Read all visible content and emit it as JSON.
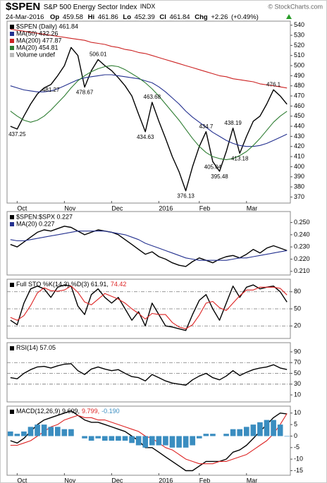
{
  "header": {
    "symbol": "$SPEN",
    "name": "S&P 500 Energy Sector Index",
    "exchange": "INDX",
    "date": "24-Mar-2016",
    "fields": [
      {
        "label": "Op",
        "value": 459.58
      },
      {
        "label": "Hi",
        "value": 461.86
      },
      {
        "label": "Lo",
        "value": 452.39
      },
      {
        "label": "Cl",
        "value": 461.84
      },
      {
        "label": "Chg",
        "value": 2.26,
        "value_label": "+2.26"
      }
    ],
    "change_pct": {
      "value": 0.49,
      "label": "(+0.49%)"
    },
    "source": "© StockCharts.com"
  },
  "chart_data": [
    {
      "type": "line",
      "categories": [
        null,
        "Oct",
        null,
        null,
        null,
        null,
        null,
        null,
        "Nov",
        null,
        null,
        null,
        null,
        null,
        null,
        "Dec",
        null,
        null,
        null,
        null,
        null,
        null,
        "2016",
        null,
        null,
        null,
        null,
        null,
        "Feb",
        null,
        null,
        null,
        null,
        null,
        null,
        "Mar",
        null,
        null,
        null,
        null,
        null,
        null
      ],
      "series": [
        {
          "name": "$SPEN (Daily) 461.84",
          "color": "#000000",
          "values": [
            440,
            437.25,
            450,
            462,
            472,
            478,
            481.27,
            490,
            500,
            518,
            510,
            478.67,
            495,
            506.01,
            500,
            495,
            488,
            480,
            470,
            452,
            434.63,
            463.68,
            445,
            428,
            410,
            395,
            376.13,
            400,
            420,
            434.7,
            405.04,
            395.48,
            415,
            438.19,
            413.18,
            430,
            445,
            450,
            462,
            476.1,
            470,
            461.84
          ]
        },
        {
          "name": "MA(50) 432.26",
          "color": "#23308f",
          "values": [
            480,
            478,
            476,
            475,
            474,
            474,
            475,
            477,
            480,
            483,
            486,
            488,
            489,
            490,
            491,
            491,
            490,
            489,
            488,
            487,
            485,
            483,
            479,
            474,
            468,
            462,
            455,
            449,
            444,
            439,
            434,
            430,
            426,
            423,
            421,
            420,
            420,
            421,
            423,
            426,
            429,
            432.26
          ]
        },
        {
          "name": "MA(200) 477.87",
          "color": "#cc2222",
          "values": [
            536,
            535,
            534,
            533,
            532,
            531,
            530,
            529,
            528,
            527,
            526,
            525,
            523,
            522,
            521,
            519,
            518,
            516,
            515,
            513,
            512,
            510,
            508,
            506,
            504,
            502,
            500,
            498,
            496,
            494,
            492,
            490,
            489,
            487,
            486,
            485,
            484,
            482,
            481,
            480,
            479,
            477.87
          ]
        },
        {
          "name": "MA(20) 454.81",
          "color": "#2e7d32",
          "values": [
            455,
            450,
            446,
            444,
            446,
            450,
            456,
            463,
            470,
            478,
            485,
            490,
            494,
            497,
            499,
            500,
            499,
            496,
            492,
            488,
            483,
            477,
            470,
            462,
            454,
            446,
            437,
            428,
            420,
            414,
            410,
            408,
            407,
            408,
            411,
            415,
            421,
            428,
            436,
            444,
            450,
            454.81
          ]
        }
      ],
      "legend_notes": [
        "Volume undef"
      ],
      "annotations": [
        437.25,
        481.27,
        478.67,
        506.01,
        434.63,
        463.68,
        376.13,
        434.7,
        405.04,
        395.48,
        438.19,
        413.18,
        476.1
      ],
      "ylim": [
        364,
        544
      ],
      "yticks": [
        370,
        380,
        390,
        400,
        410,
        420,
        430,
        440,
        450,
        460,
        470,
        480,
        490,
        500,
        510,
        520,
        530,
        540
      ],
      "grid": false
    },
    {
      "type": "line",
      "series": [
        {
          "name": "$SPEN:$SPX 0.227",
          "color": "#000000",
          "values": [
            0.232,
            0.23,
            0.234,
            0.238,
            0.242,
            0.244,
            0.243,
            0.245,
            0.247,
            0.246,
            0.243,
            0.24,
            0.242,
            0.244,
            0.243,
            0.242,
            0.24,
            0.236,
            0.232,
            0.228,
            0.224,
            0.226,
            0.222,
            0.22,
            0.217,
            0.215,
            0.214,
            0.218,
            0.221,
            0.219,
            0.217,
            0.22,
            0.222,
            0.223,
            0.221,
            0.224,
            0.228,
            0.225,
            0.229,
            0.231,
            0.229,
            0.227
          ]
        },
        {
          "name": "MA(20) 0.227",
          "color": "#23308f",
          "values": [
            0.236,
            0.235,
            0.235,
            0.236,
            0.237,
            0.238,
            0.239,
            0.24,
            0.241,
            0.242,
            0.243,
            0.243,
            0.243,
            0.243,
            0.243,
            0.242,
            0.241,
            0.24,
            0.238,
            0.236,
            0.233,
            0.231,
            0.229,
            0.227,
            0.225,
            0.223,
            0.221,
            0.22,
            0.219,
            0.219,
            0.219,
            0.219,
            0.219,
            0.22,
            0.221,
            0.221,
            0.222,
            0.223,
            0.224,
            0.225,
            0.226,
            0.227
          ]
        }
      ],
      "ylim": [
        0.207,
        0.259
      ],
      "yticks": [
        {
          "value": 0.21,
          "label": "0.210"
        },
        {
          "value": 0.22,
          "label": "0.220"
        },
        {
          "value": 0.23,
          "label": "0.230"
        },
        {
          "value": 0.24,
          "label": "0.240"
        },
        {
          "value": 0.25,
          "label": "0.250"
        }
      ],
      "grid": false
    },
    {
      "type": "line",
      "legend": [
        "Full STO %K(14,3) %D(3) 61.91,",
        "74.42"
      ],
      "series": [
        {
          "color": "#000000",
          "values": [
            30,
            22,
            60,
            85,
            90,
            85,
            70,
            88,
            92,
            90,
            55,
            40,
            75,
            85,
            70,
            60,
            70,
            50,
            30,
            45,
            20,
            60,
            40,
            20,
            18,
            15,
            12,
            40,
            65,
            75,
            50,
            30,
            60,
            90,
            70,
            88,
            92,
            85,
            88,
            90,
            80,
            61.91
          ]
        },
        {
          "color": "#dd2222",
          "values": [
            35,
            30,
            38,
            56,
            78,
            87,
            82,
            81,
            83,
            90,
            79,
            62,
            57,
            67,
            77,
            72,
            67,
            60,
            50,
            42,
            32,
            42,
            40,
            40,
            26,
            18,
            15,
            22,
            39,
            60,
            63,
            52,
            47,
            60,
            73,
            83,
            83,
            88,
            88,
            88,
            86,
            74.42
          ]
        }
      ],
      "ylim": [
        -2,
        102
      ],
      "yticks": [
        20,
        50,
        80
      ],
      "reference_lines": [
        20,
        50,
        80
      ],
      "grid": false
    },
    {
      "type": "line",
      "legend": [
        "RSI(14) 57.05"
      ],
      "series": [
        {
          "color": "#000000",
          "values": [
            42,
            40,
            50,
            57,
            62,
            63,
            60,
            64,
            67,
            68,
            55,
            48,
            58,
            62,
            58,
            55,
            57,
            50,
            44,
            42,
            36,
            48,
            42,
            36,
            32,
            30,
            28,
            38,
            45,
            50,
            42,
            38,
            45,
            55,
            46,
            52,
            57,
            60,
            62,
            66,
            60,
            57.05
          ]
        }
      ],
      "ylim": [
        -3,
        107
      ],
      "yticks": [
        10,
        30,
        50,
        70,
        90
      ],
      "reference_lines": [
        30,
        50,
        70
      ],
      "grid": false
    },
    {
      "type": "line",
      "categories": [
        null,
        "Oct",
        null,
        null,
        null,
        null,
        null,
        null,
        "Nov",
        null,
        null,
        null,
        null,
        null,
        null,
        "Dec",
        null,
        null,
        null,
        null,
        null,
        null,
        "2016",
        null,
        null,
        null,
        null,
        null,
        "Feb",
        null,
        null,
        null,
        null,
        null,
        null,
        "Mar",
        null,
        null,
        null,
        null,
        null,
        null
      ],
      "legend": [
        "MACD(12,26,9) 9.609,",
        "9.799,",
        "-0.190"
      ],
      "series": [
        {
          "color": "#000000",
          "values": [
            -2,
            -3,
            -1,
            2,
            5,
            7,
            8,
            9,
            10,
            11,
            9,
            7,
            6,
            6,
            5,
            4,
            3,
            2,
            0,
            -2,
            -5,
            -5,
            -7,
            -9,
            -11,
            -13,
            -15,
            -15,
            -13,
            -11,
            -11,
            -11,
            -10,
            -7,
            -6,
            -4,
            -1,
            2,
            5,
            8,
            10,
            9.609
          ]
        },
        {
          "color": "#dd2222",
          "values": [
            -4,
            -4,
            -3,
            -2,
            0,
            2,
            4,
            5,
            7,
            8,
            9,
            8,
            8,
            7,
            7,
            6,
            5,
            4,
            3,
            2,
            0,
            -1,
            -3,
            -5,
            -6,
            -8,
            -10,
            -11,
            -12,
            -12,
            -12,
            -11,
            -11,
            -10,
            -9,
            -8,
            -6,
            -4,
            -2,
            1,
            5,
            9.799
          ]
        },
        {
          "color": "#3a8dc0",
          "type": "bar",
          "values": [
            2,
            1,
            2,
            4,
            5,
            5,
            4,
            4,
            3,
            3,
            0,
            -1,
            -2,
            -1,
            -2,
            -2,
            -2,
            -2,
            -3,
            -4,
            -5,
            -4,
            -4,
            -4,
            -5,
            -5,
            -5,
            -4,
            -1,
            1,
            1,
            0,
            1,
            3,
            3,
            4,
            5,
            6,
            7,
            7,
            5,
            -0.19
          ]
        }
      ],
      "ylim": [
        -17,
        13
      ],
      "yticks": [
        -15,
        -10,
        -5,
        0,
        5,
        10
      ],
      "grid": false
    }
  ]
}
